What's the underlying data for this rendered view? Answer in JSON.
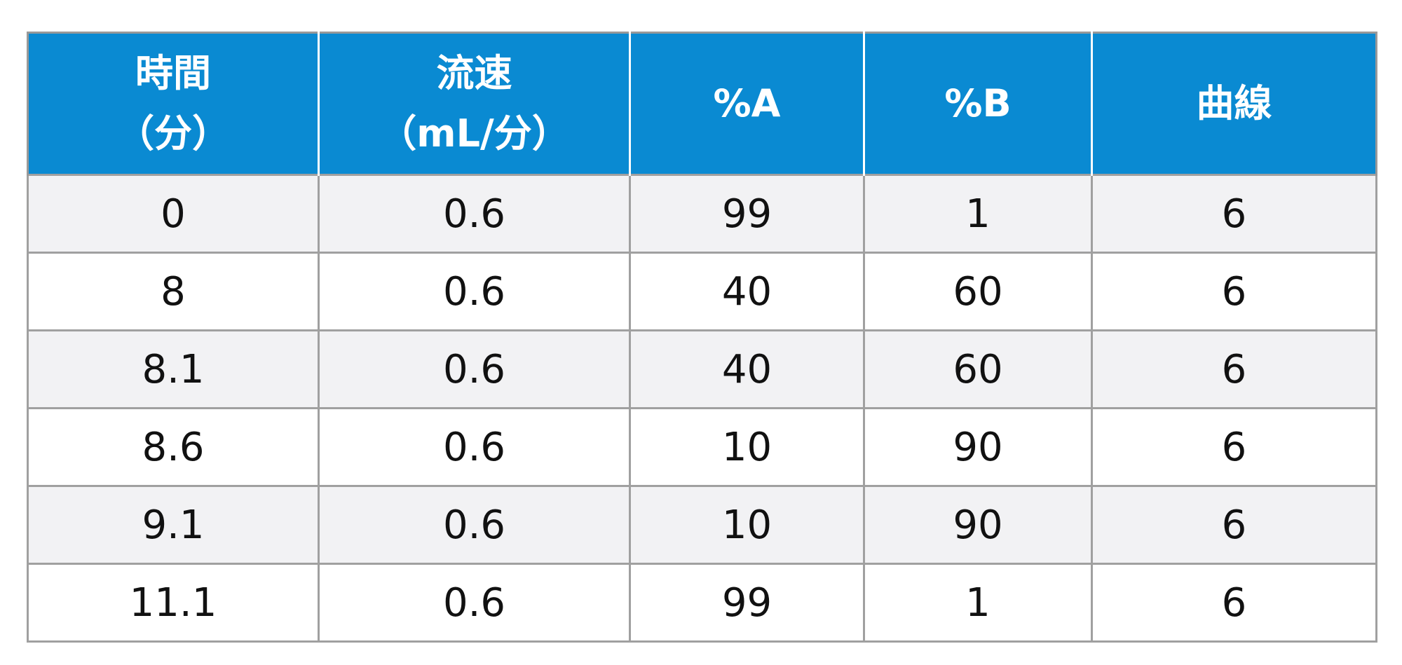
{
  "table": {
    "header": [
      [
        "時間",
        "（分）"
      ],
      [
        "流速",
        "（mL/分）"
      ],
      [
        "%A"
      ],
      [
        "%B"
      ],
      [
        "曲線"
      ]
    ],
    "rows": [
      [
        "0",
        "0.6",
        "99",
        "1",
        "6"
      ],
      [
        "8",
        "0.6",
        "40",
        "60",
        "6"
      ],
      [
        "8.1",
        "0.6",
        "40",
        "60",
        "6"
      ],
      [
        "8.6",
        "0.6",
        "10",
        "90",
        "6"
      ],
      [
        "9.1",
        "0.6",
        "10",
        "90",
        "6"
      ],
      [
        "11.1",
        "0.6",
        "99",
        "1",
        "6"
      ]
    ]
  }
}
